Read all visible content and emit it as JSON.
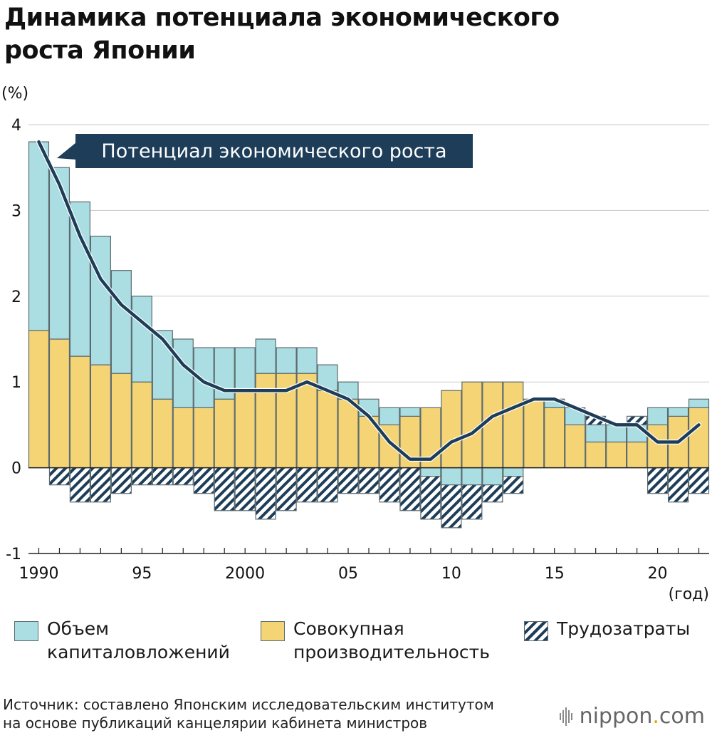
{
  "title_lines": [
    "Динамика потенциала экономического",
    "роста Японии"
  ],
  "source_lines": [
    "Источник: составлено Японским исследовательским институтом",
    "на основе публикаций канцелярии кабинета министров"
  ],
  "logo": {
    "text": "nippon",
    "dot": ".",
    "suffix": "com"
  },
  "chart_data": {
    "type": "bar",
    "stacked": true,
    "ylabel": "(%)",
    "xlabel": "(год)",
    "ylim": [
      -1,
      4
    ],
    "yticks": [
      -1,
      0,
      1,
      2,
      3,
      4
    ],
    "grid": true,
    "x": [
      1990,
      1991,
      1992,
      1993,
      1994,
      1995,
      1996,
      1997,
      1998,
      1999,
      2000,
      2001,
      2002,
      2003,
      2004,
      2005,
      2006,
      2007,
      2008,
      2009,
      2010,
      2011,
      2012,
      2013,
      2014,
      2015,
      2016,
      2017,
      2018,
      2019,
      2020,
      2021,
      2022
    ],
    "xticks": [
      {
        "x": 1990,
        "label": "1990"
      },
      {
        "x": 1995,
        "label": "95"
      },
      {
        "x": 2000,
        "label": "2000"
      },
      {
        "x": 2005,
        "label": "05"
      },
      {
        "x": 2010,
        "label": "10"
      },
      {
        "x": 2015,
        "label": "15"
      },
      {
        "x": 2020,
        "label": "20"
      }
    ],
    "series": [
      {
        "name": "Совокупная производительность",
        "type": "bar",
        "color": "#f5d476",
        "values": [
          1.6,
          1.5,
          1.3,
          1.2,
          1.1,
          1.0,
          0.8,
          0.7,
          0.7,
          0.8,
          0.9,
          1.1,
          1.1,
          1.1,
          0.9,
          0.8,
          0.6,
          0.5,
          0.6,
          0.7,
          0.9,
          1.0,
          1.0,
          1.0,
          0.8,
          0.7,
          0.5,
          0.3,
          0.3,
          0.3,
          0.5,
          0.6,
          0.7
        ]
      },
      {
        "name": "Объем капиталовложений",
        "type": "bar",
        "color": "#aadee3",
        "values": [
          2.2,
          2.0,
          1.8,
          1.5,
          1.2,
          1.0,
          0.8,
          0.8,
          0.7,
          0.6,
          0.5,
          0.4,
          0.3,
          0.3,
          0.3,
          0.2,
          0.2,
          0.2,
          0.1,
          -0.1,
          -0.2,
          -0.2,
          -0.2,
          -0.1,
          0.0,
          0.1,
          0.2,
          0.2,
          0.2,
          0.2,
          0.2,
          0.1,
          0.1
        ]
      },
      {
        "name": "Трудозатраты",
        "type": "bar",
        "color": "#1d3d58",
        "values": [
          0.0,
          -0.2,
          -0.4,
          -0.4,
          -0.3,
          -0.2,
          -0.2,
          -0.2,
          -0.3,
          -0.5,
          -0.5,
          -0.6,
          -0.5,
          -0.4,
          -0.4,
          -0.3,
          -0.3,
          -0.4,
          -0.5,
          -0.5,
          -0.5,
          -0.4,
          -0.2,
          -0.2,
          0.0,
          0.0,
          0.0,
          0.1,
          0.0,
          0.1,
          -0.3,
          -0.4,
          -0.3
        ]
      },
      {
        "name": "Потенциал экономического роста",
        "type": "line",
        "color": "#1d3d58",
        "values": [
          3.8,
          3.3,
          2.7,
          2.2,
          1.9,
          1.7,
          1.5,
          1.2,
          1.0,
          0.9,
          0.9,
          0.9,
          0.9,
          1.0,
          0.9,
          0.8,
          0.6,
          0.3,
          0.1,
          0.1,
          0.3,
          0.4,
          0.6,
          0.7,
          0.8,
          0.8,
          0.7,
          0.6,
          0.5,
          0.5,
          0.3,
          0.3,
          0.5
        ]
      }
    ]
  }
}
